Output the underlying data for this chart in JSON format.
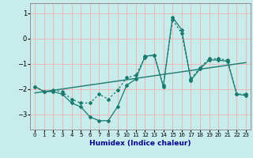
{
  "xlabel": "Humidex (Indice chaleur)",
  "background_color": "#c8ecec",
  "grid_color": "#f0b0b0",
  "line_color": "#1a7a6e",
  "xlim": [
    -0.5,
    23.5
  ],
  "ylim": [
    -3.6,
    1.4
  ],
  "xticks": [
    0,
    1,
    2,
    3,
    4,
    5,
    6,
    7,
    8,
    9,
    10,
    11,
    12,
    13,
    14,
    15,
    16,
    17,
    18,
    19,
    20,
    21,
    22,
    23
  ],
  "yticks": [
    -3,
    -2,
    -1,
    0,
    1
  ],
  "line1_x": [
    0,
    1,
    2,
    3,
    4,
    5,
    6,
    7,
    8,
    9,
    10,
    11,
    12,
    13,
    14,
    15,
    16,
    17,
    18,
    19,
    20,
    21,
    22,
    23
  ],
  "line1_y": [
    -1.9,
    -2.1,
    -2.1,
    -2.2,
    -2.55,
    -2.7,
    -3.1,
    -3.25,
    -3.25,
    -2.7,
    -1.85,
    -1.6,
    -0.7,
    -0.65,
    -1.9,
    0.85,
    0.35,
    -1.65,
    -1.2,
    -0.85,
    -0.85,
    -0.9,
    -2.2,
    -2.25
  ],
  "line2_x": [
    0,
    1,
    2,
    3,
    4,
    5,
    6,
    7,
    8,
    9,
    10,
    11,
    12,
    13,
    14,
    15,
    16,
    17,
    18,
    19,
    20,
    21,
    22,
    23
  ],
  "line2_y": [
    -1.9,
    -2.1,
    -2.05,
    -2.1,
    -2.4,
    -2.55,
    -2.55,
    -2.2,
    -2.4,
    -2.05,
    -1.55,
    -1.45,
    -0.75,
    -0.65,
    -1.85,
    0.75,
    0.2,
    -1.6,
    -1.15,
    -0.8,
    -0.8,
    -0.85,
    -2.2,
    -2.2
  ],
  "trend_x": [
    0,
    23
  ],
  "trend_y": [
    -2.15,
    -0.95
  ]
}
